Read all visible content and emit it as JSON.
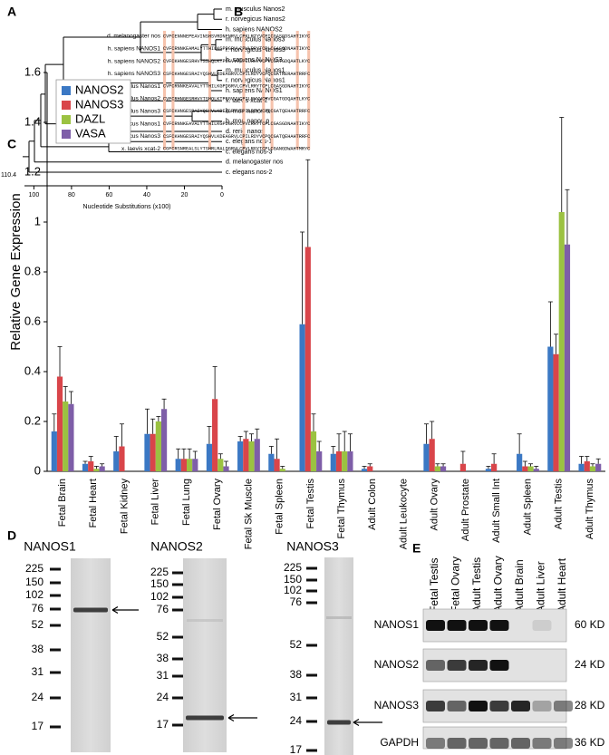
{
  "panel_labels": [
    "A",
    "B",
    "C",
    "D",
    "E"
  ],
  "tree": {
    "leaves": [
      "m. musculus Nanos2",
      "r. norvegicus Nanos2",
      "h. sapiens NANOS2",
      "m. musculus Nanos3",
      "r. norvegicus Nanos3",
      "h. sapiens NANOS3",
      "m. musculus Nanos1",
      "r. norvegicus Nanos1",
      "h. sapiens NANOS1",
      "x. laevis xcat-2",
      "b. mori nanos o",
      "b. mori nanos p",
      "d. rerio nanos",
      "c. elegans nos-1",
      "c. elegans nos-3",
      "d. melanogaster nos",
      "c. elegans nos-2"
    ],
    "root_label": "110.4",
    "axis_label": "Nucleotide Substitutions (x100)",
    "xlim": [
      105,
      0
    ],
    "xticks": [
      100,
      80,
      60,
      40,
      20,
      0
    ]
  },
  "alignment": {
    "rows": [
      {
        "name": "d. melanogaster nos",
        "sequence": "CVFCENNNEPEAVINSHSVRDNFNRVLCPKLRTYVCPICGASGDSAHTIKYC"
      },
      {
        "name": "h. sapiens NANOS1",
        "sequence": "CVFCRNNKEAMALYTTHILKGPDGRVLCPVLRRYTCPLCGASGDNAHTIKYC"
      },
      {
        "name": "h. sapiens NANOS2",
        "sequence": "CVFCKHNGESRHVYSSHQLKTPDGVVVCPILRHYVCPVCGATGDQAHTLKYC"
      },
      {
        "name": "h. sapiens NANOS3",
        "sequence": "CSFCKHNGESRAIYQSHVLKDEAGRVLCPILRDYVCPQCGATRERAHTRRFC"
      },
      {
        "name": "m. musculus Nanos1",
        "sequence": "CVFCRNNKEAVALYTTHILKGPDGRVLCPVLRRYTCPLCGASGDNAHTIKYC"
      },
      {
        "name": "m. musculus Nanos2",
        "sequence": "CVFCRHNGESRHVYTSHQLKTPEGVVVCPILRHYVCPVCGATGDQAHTLKYC"
      },
      {
        "name": "m. musculus Nanos3",
        "sequence": "CSFCKHNGESRAIYQSHVLKDEAGRVLCPILRDYVCPQCGATQEHAHTRRFC"
      },
      {
        "name": "r. norvegicus Nanos1",
        "sequence": "CVFCRNNKEAVALYTTHILKGPDGRVLCPVLRRYTCPLCGASGDNAHTIKYC"
      },
      {
        "name": "r. norvegicus Nanos3",
        "sequence": "CSFCKHNGESRAIYQSHVLKDEAGRVLCPILRDYVCPQCGATQEHAHTRRFC"
      },
      {
        "name": "x. laevis xcat-2",
        "sequence": "CGFCRSNREALSLYTSHRLRALDGRVLCPVLRGYTCPLCGANGDWAHTMRYC"
      }
    ]
  },
  "chart_data": {
    "type": "bar",
    "y_label": "Relative Gene Expression",
    "categories": [
      "Fetal Brain",
      "Fetal Heart",
      "Fetal Kidney",
      "Fetal Liver",
      "Fetal Lung",
      "Fetal Ovary",
      "Fetal Sk Muscle",
      "Fetal Spleen",
      "Fetal Testis",
      "Fetal Thymus",
      "Adult Colon",
      "Adult Leukocyte",
      "Adult Ovary",
      "Adult Prostate",
      "Adult Small Int",
      "Adult Spleen",
      "Adult Testis",
      "Adult Thymus"
    ],
    "series": [
      {
        "name": "NANOS2",
        "color": "#3b78c4",
        "values": [
          0.16,
          0.03,
          0.08,
          0.15,
          0.05,
          0.11,
          0.12,
          0.07,
          0.59,
          0.07,
          0.01,
          0,
          0.11,
          0,
          0.01,
          0.07,
          0.5,
          0.03
        ],
        "errors": [
          0.07,
          0.01,
          0.06,
          0.1,
          0.04,
          0.07,
          0.02,
          0.03,
          0.37,
          0.03,
          0.01,
          0,
          0.08,
          0,
          0.01,
          0.08,
          0.18,
          0.03
        ]
      },
      {
        "name": "NANOS3",
        "color": "#d9454a",
        "values": [
          0.38,
          0.04,
          0.1,
          0.15,
          0.05,
          0.29,
          0.13,
          0.05,
          0.9,
          0.08,
          0.02,
          0,
          0.13,
          0.03,
          0.03,
          0.02,
          0.47,
          0.04
        ],
        "errors": [
          0.12,
          0.02,
          0.09,
          0.06,
          0.04,
          0.13,
          0.03,
          0.08,
          0.35,
          0.07,
          0.01,
          0,
          0.07,
          0.05,
          0.04,
          0.02,
          0.08,
          0.02
        ]
      },
      {
        "name": "DAZL",
        "color": "#9bc241",
        "values": [
          0.28,
          0.01,
          0,
          0.2,
          0.05,
          0.05,
          0.12,
          0.01,
          0.16,
          0.08,
          0,
          0,
          0.02,
          0,
          0,
          0.02,
          1.04,
          0.02
        ],
        "errors": [
          0.06,
          0.01,
          0,
          0.02,
          0.04,
          0.02,
          0.03,
          0.01,
          0.07,
          0.08,
          0,
          0,
          0.01,
          0,
          0,
          0.01,
          0.38,
          0.01
        ]
      },
      {
        "name": "VASA",
        "color": "#7e5ea8",
        "values": [
          0.27,
          0.02,
          0,
          0.25,
          0.05,
          0.02,
          0.13,
          0,
          0.08,
          0.08,
          0,
          0,
          0.02,
          0,
          0,
          0.01,
          0.91,
          0.03
        ],
        "errors": [
          0.05,
          0.01,
          0,
          0.04,
          0.03,
          0.02,
          0.04,
          0,
          0.04,
          0.07,
          0,
          0,
          0.01,
          0,
          0,
          0.01,
          0.22,
          0.02
        ]
      }
    ],
    "ylim": [
      0,
      1.6
    ],
    "yticks": [
      0,
      0.2,
      0.4,
      0.6,
      0.8,
      1,
      1.2,
      1.4,
      1.6
    ],
    "grid": false,
    "legend": "top-left"
  },
  "blots": [
    {
      "title": "NANOS1",
      "markers": [
        "225",
        "150",
        "102",
        "76",
        "52",
        "38",
        "31",
        "24",
        "17"
      ]
    },
    {
      "title": "NANOS2",
      "markers": [
        "225",
        "150",
        "102",
        "76",
        "52",
        "38",
        "31",
        "24",
        "17"
      ]
    },
    {
      "title": "NANOS3",
      "markers": [
        "225",
        "150",
        "102",
        "76",
        "52",
        "38",
        "31",
        "24",
        "17"
      ]
    }
  ],
  "tissue_blot": {
    "columns": [
      "Fetal Testis",
      "Fetal Ovary",
      "Adult Testis",
      "Adult Ovary",
      "Adult Brain",
      "Adult Liver",
      "Adult Heart"
    ],
    "rows": [
      {
        "name": "NANOS1",
        "size": "60 KD"
      },
      {
        "name": "NANOS2",
        "size": "24 KD"
      },
      {
        "name": "NANOS3",
        "size": "28 KD"
      },
      {
        "name": "GAPDH",
        "size": "36 KD"
      }
    ]
  }
}
